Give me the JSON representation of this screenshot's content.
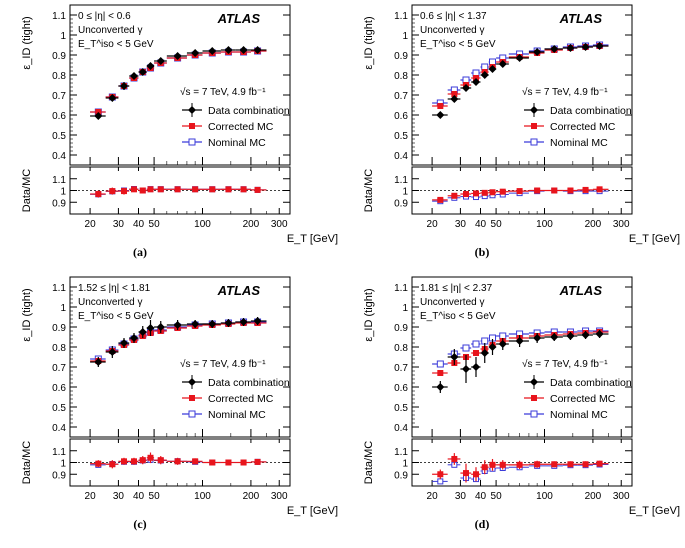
{
  "legend": {
    "data_label": "Data combination",
    "corrected_label": "Corrected MC",
    "nominal_label": "Nominal MC"
  },
  "common": {
    "experiment": "ATLAS",
    "energy": "√s = 7 TeV, 4.9 fb⁻¹",
    "conversion": "Unconverted γ",
    "iso_cut": "E_T^iso < 5 GeV",
    "x_axis_label": "E_T [GeV]",
    "y_axis_label": "ε_ID (tight)",
    "ratio_axis_label": "Data/MC"
  },
  "colors": {
    "data": "#000000",
    "corrected_mc": "#e8141c",
    "nominal_mc": "#3b3bd9"
  },
  "chart_data": [
    {
      "type": "scatter",
      "panel": "(a)",
      "eta_label": "0 ≤ |η| < 0.6",
      "x_scale": "log",
      "xlim": [
        15,
        350
      ],
      "ylim": [
        0.35,
        1.15
      ],
      "ratio_ylim": [
        0.8,
        1.2
      ],
      "x_ticks": [
        20,
        30,
        40,
        50,
        100,
        200,
        300
      ],
      "y_ticks": [
        0.4,
        0.5,
        0.6,
        0.7,
        0.8,
        0.9,
        1.0,
        1.1
      ],
      "ratio_ticks": [
        0.9,
        1.0,
        1.1
      ],
      "legend_position": "right",
      "x": [
        22.5,
        27.5,
        32.5,
        37.5,
        42.5,
        47.5,
        55,
        70,
        90,
        115,
        145,
        180,
        220
      ],
      "x_low": [
        20,
        25,
        30,
        35,
        40,
        45,
        50,
        60,
        80,
        100,
        130,
        160,
        200
      ],
      "x_high": [
        25,
        30,
        35,
        40,
        45,
        50,
        60,
        80,
        100,
        130,
        160,
        200,
        250
      ],
      "series": [
        {
          "name": "Data combination",
          "values": [
            0.595,
            0.685,
            0.745,
            0.795,
            0.815,
            0.845,
            0.87,
            0.895,
            0.91,
            0.92,
            0.925,
            0.925,
            0.925
          ],
          "errors": [
            0.015,
            0.015,
            0.02,
            0.015,
            0.015,
            0.015,
            0.012,
            0.012,
            0.01,
            0.01,
            0.01,
            0.01,
            0.015
          ]
        },
        {
          "name": "Corrected MC",
          "values": [
            0.615,
            0.69,
            0.745,
            0.785,
            0.815,
            0.835,
            0.86,
            0.885,
            0.9,
            0.91,
            0.915,
            0.915,
            0.92
          ]
        },
        {
          "name": "Nominal MC",
          "values": [
            0.615,
            0.69,
            0.745,
            0.785,
            0.815,
            0.835,
            0.86,
            0.885,
            0.9,
            0.91,
            0.915,
            0.915,
            0.92
          ]
        }
      ],
      "ratio_series": [
        {
          "name": "Data/MC",
          "values": [
            0.97,
            0.995,
            0.995,
            1.01,
            1.0,
            1.01,
            1.01,
            1.01,
            1.01,
            1.01,
            1.01,
            1.01,
            1.005
          ],
          "errors": [
            0.03,
            0.03,
            0.03,
            0.02,
            0.02,
            0.02,
            0.015,
            0.015,
            0.015,
            0.015,
            0.015,
            0.015,
            0.02
          ]
        }
      ]
    },
    {
      "type": "scatter",
      "panel": "(b)",
      "eta_label": "0.6 ≤ |η| < 1.37",
      "x_scale": "log",
      "xlim": [
        15,
        350
      ],
      "ylim": [
        0.35,
        1.15
      ],
      "ratio_ylim": [
        0.8,
        1.2
      ],
      "x_ticks": [
        20,
        30,
        40,
        50,
        100,
        200,
        300
      ],
      "y_ticks": [
        0.4,
        0.5,
        0.6,
        0.7,
        0.8,
        0.9,
        1.0,
        1.1
      ],
      "ratio_ticks": [
        0.9,
        1.0,
        1.1
      ],
      "legend_position": "right",
      "x": [
        22.5,
        27.5,
        32.5,
        37.5,
        42.5,
        47.5,
        55,
        70,
        90,
        115,
        145,
        180,
        220
      ],
      "x_low": [
        20,
        25,
        30,
        35,
        40,
        45,
        50,
        60,
        80,
        100,
        130,
        160,
        200
      ],
      "x_high": [
        25,
        30,
        35,
        40,
        45,
        50,
        60,
        80,
        100,
        130,
        160,
        200,
        250
      ],
      "series": [
        {
          "name": "Data combination",
          "values": [
            0.6,
            0.68,
            0.735,
            0.765,
            0.8,
            0.83,
            0.855,
            0.885,
            0.915,
            0.93,
            0.935,
            0.94,
            0.945
          ],
          "errors": [
            0.015,
            0.015,
            0.015,
            0.015,
            0.015,
            0.015,
            0.012,
            0.012,
            0.01,
            0.01,
            0.01,
            0.01,
            0.01
          ]
        },
        {
          "name": "Corrected MC",
          "values": [
            0.645,
            0.705,
            0.75,
            0.785,
            0.815,
            0.84,
            0.865,
            0.89,
            0.91,
            0.925,
            0.935,
            0.94,
            0.945
          ]
        },
        {
          "name": "Nominal MC",
          "values": [
            0.66,
            0.725,
            0.775,
            0.81,
            0.84,
            0.865,
            0.885,
            0.905,
            0.92,
            0.93,
            0.94,
            0.945,
            0.95
          ]
        }
      ],
      "ratio_series": [
        {
          "name": "Data/MC",
          "values": [
            0.92,
            0.955,
            0.97,
            0.975,
            0.98,
            0.985,
            0.99,
            0.995,
            1.0,
            1.0,
            1.0,
            1.005,
            1.01
          ],
          "errors": [
            0.02,
            0.02,
            0.02,
            0.02,
            0.02,
            0.02,
            0.015,
            0.015,
            0.015,
            0.01,
            0.01,
            0.01,
            0.01
          ]
        }
      ]
    },
    {
      "type": "scatter",
      "panel": "(c)",
      "eta_label": "1.52 ≤ |η| < 1.81",
      "x_scale": "log",
      "xlim": [
        15,
        350
      ],
      "ylim": [
        0.35,
        1.15
      ],
      "ratio_ylim": [
        0.8,
        1.2
      ],
      "x_ticks": [
        20,
        30,
        40,
        50,
        100,
        200,
        300
      ],
      "y_ticks": [
        0.4,
        0.5,
        0.6,
        0.7,
        0.8,
        0.9,
        1.0,
        1.1
      ],
      "ratio_ticks": [
        0.9,
        1.0,
        1.1
      ],
      "legend_position": "right",
      "x": [
        22.5,
        27.5,
        32.5,
        37.5,
        42.5,
        47.5,
        55,
        70,
        90,
        115,
        145,
        180,
        220
      ],
      "x_low": [
        20,
        25,
        30,
        35,
        40,
        45,
        50,
        60,
        80,
        100,
        130,
        160,
        200
      ],
      "x_high": [
        25,
        30,
        35,
        40,
        45,
        50,
        60,
        80,
        100,
        130,
        160,
        200,
        250
      ],
      "series": [
        {
          "name": "Data combination",
          "values": [
            0.725,
            0.775,
            0.82,
            0.845,
            0.875,
            0.895,
            0.9,
            0.91,
            0.915,
            0.915,
            0.92,
            0.925,
            0.93
          ],
          "errors": [
            0.025,
            0.03,
            0.025,
            0.025,
            0.03,
            0.04,
            0.03,
            0.025,
            0.02,
            0.02,
            0.02,
            0.02,
            0.02
          ]
        },
        {
          "name": "Corrected MC",
          "values": [
            0.73,
            0.78,
            0.81,
            0.835,
            0.855,
            0.87,
            0.88,
            0.895,
            0.905,
            0.91,
            0.915,
            0.92,
            0.92
          ]
        },
        {
          "name": "Nominal MC",
          "values": [
            0.74,
            0.785,
            0.815,
            0.84,
            0.86,
            0.875,
            0.885,
            0.9,
            0.91,
            0.915,
            0.92,
            0.925,
            0.925
          ]
        }
      ],
      "ratio_series": [
        {
          "name": "Data/MC",
          "values": [
            0.99,
            0.985,
            1.01,
            1.01,
            1.02,
            1.04,
            1.02,
            1.01,
            1.01,
            1.0,
            1.0,
            1.0,
            1.005
          ],
          "errors": [
            0.03,
            0.035,
            0.03,
            0.03,
            0.035,
            0.045,
            0.035,
            0.03,
            0.025,
            0.025,
            0.025,
            0.025,
            0.025
          ]
        }
      ]
    },
    {
      "type": "scatter",
      "panel": "(d)",
      "eta_label": "1.81 ≤ |η| < 2.37",
      "x_scale": "log",
      "xlim": [
        15,
        350
      ],
      "ylim": [
        0.35,
        1.15
      ],
      "ratio_ylim": [
        0.8,
        1.2
      ],
      "x_ticks": [
        20,
        30,
        40,
        50,
        100,
        200,
        300
      ],
      "y_ticks": [
        0.4,
        0.5,
        0.6,
        0.7,
        0.8,
        0.9,
        1.0,
        1.1
      ],
      "ratio_ticks": [
        0.9,
        1.0,
        1.1
      ],
      "legend_position": "right",
      "x": [
        22.5,
        27.5,
        32.5,
        37.5,
        42.5,
        47.5,
        55,
        70,
        90,
        115,
        145,
        180,
        220
      ],
      "x_low": [
        20,
        25,
        30,
        35,
        40,
        45,
        50,
        60,
        80,
        100,
        130,
        160,
        200
      ],
      "x_high": [
        25,
        30,
        35,
        40,
        45,
        50,
        60,
        80,
        100,
        130,
        160,
        200,
        250
      ],
      "series": [
        {
          "name": "Data combination",
          "values": [
            0.6,
            0.75,
            0.69,
            0.7,
            0.77,
            0.8,
            0.815,
            0.83,
            0.845,
            0.85,
            0.855,
            0.86,
            0.865
          ],
          "errors": [
            0.03,
            0.04,
            0.07,
            0.05,
            0.05,
            0.04,
            0.03,
            0.03,
            0.025,
            0.02,
            0.02,
            0.02,
            0.02
          ]
        },
        {
          "name": "Corrected MC",
          "values": [
            0.67,
            0.72,
            0.75,
            0.77,
            0.79,
            0.81,
            0.83,
            0.845,
            0.855,
            0.86,
            0.865,
            0.87,
            0.875
          ]
        },
        {
          "name": "Nominal MC",
          "values": [
            0.715,
            0.765,
            0.795,
            0.815,
            0.83,
            0.845,
            0.855,
            0.865,
            0.87,
            0.875,
            0.875,
            0.88,
            0.88
          ]
        }
      ],
      "ratio_series": [
        {
          "name": "Data/MC",
          "values": [
            0.9,
            1.03,
            0.91,
            0.9,
            0.96,
            0.98,
            0.98,
            0.98,
            0.985,
            0.985,
            0.985,
            0.985,
            0.99
          ],
          "errors": [
            0.04,
            0.05,
            0.08,
            0.06,
            0.06,
            0.05,
            0.04,
            0.035,
            0.03,
            0.025,
            0.025,
            0.025,
            0.025
          ]
        }
      ]
    }
  ]
}
